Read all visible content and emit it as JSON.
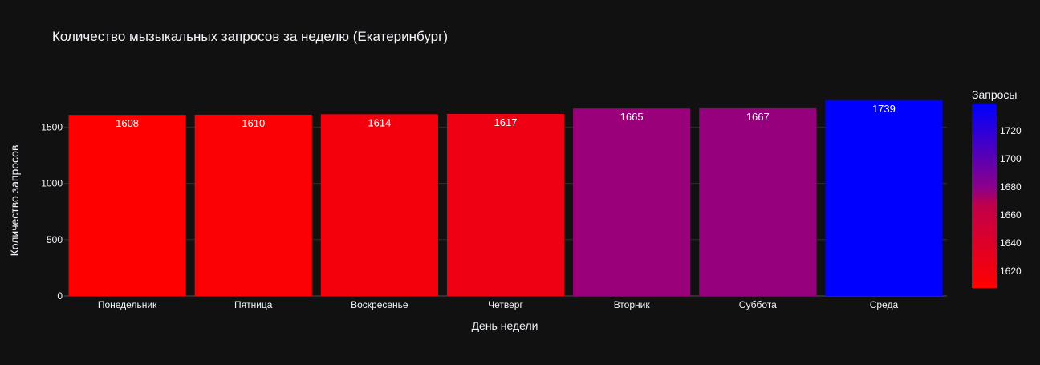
{
  "colors": {
    "background": "#111111",
    "grid": "#2f2f2f",
    "text": "#f2f5fa",
    "scale_low": "#ff0000",
    "scale_mid": "#8b008b",
    "scale_high": "#0000ff"
  },
  "chart_data": {
    "type": "bar",
    "title": "Количество мызыкальных запросов за неделю (Екатеринбург)",
    "xlabel": "День недели",
    "ylabel": "Количество запросов",
    "categories": [
      "Понедельник",
      "Пятница",
      "Воскресенье",
      "Четверг",
      "Вторник",
      "Суббота",
      "Среда"
    ],
    "values": [
      1608,
      1610,
      1614,
      1617,
      1665,
      1667,
      1739
    ],
    "data_labels": [
      "1608",
      "1610",
      "1614",
      "1617",
      "1665",
      "1667",
      "1739"
    ],
    "ylim": [
      0,
      1830
    ],
    "yticks": [
      0,
      500,
      1000,
      1500
    ],
    "ytick_labels": [
      "0",
      "500",
      "1000",
      "1500"
    ],
    "grid": true,
    "colorbar": {
      "title": "Запросы",
      "range": [
        1608,
        1739
      ],
      "ticks": [
        1620,
        1640,
        1660,
        1680,
        1700,
        1720
      ],
      "tick_labels": [
        "1620",
        "1640",
        "1660",
        "1680",
        "1700",
        "1720"
      ]
    }
  }
}
